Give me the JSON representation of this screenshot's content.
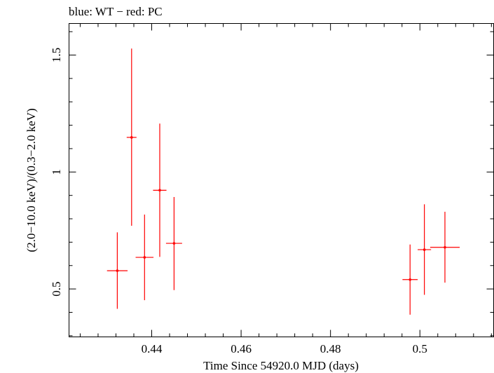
{
  "chart_data": {
    "type": "scatter",
    "title": "blue: WT − red: PC",
    "xlabel": "Time Since 54920.0 MJD (days)",
    "ylabel": "(2.0−10.0 keV)/(0.3−2.0 keV)",
    "xlim": [
      0.4215,
      0.5165
    ],
    "ylim": [
      0.295,
      1.635
    ],
    "x_ticks": [
      {
        "value": 0.44,
        "label": "0.44"
      },
      {
        "value": 0.46,
        "label": "0.46"
      },
      {
        "value": 0.48,
        "label": "0.48"
      },
      {
        "value": 0.5,
        "label": "0.5"
      }
    ],
    "y_ticks": [
      {
        "value": 0.5,
        "label": "0.5"
      },
      {
        "value": 1.0,
        "label": "1"
      },
      {
        "value": 1.5,
        "label": "1.5"
      }
    ],
    "grid": false,
    "legend": "none",
    "colors": {
      "pc": "#ff0000",
      "axis": "#000000"
    },
    "series": [
      {
        "points": [
          {
            "x": 0.4323,
            "xerr": 0.0023,
            "y": 0.578,
            "ylo": 0.415,
            "yhi": 0.742
          },
          {
            "x": 0.4355,
            "xerr": 0.0011,
            "y": 1.148,
            "ylo": 0.77,
            "yhi": 1.528
          },
          {
            "x": 0.4384,
            "xerr": 0.002,
            "y": 0.635,
            "ylo": 0.452,
            "yhi": 0.818
          },
          {
            "x": 0.4418,
            "xerr": 0.0015,
            "y": 0.922,
            "ylo": 0.637,
            "yhi": 1.207
          },
          {
            "x": 0.445,
            "xerr": 0.0018,
            "y": 0.695,
            "ylo": 0.495,
            "yhi": 0.893
          },
          {
            "x": 0.4978,
            "xerr": 0.0017,
            "y": 0.54,
            "ylo": 0.39,
            "yhi": 0.69
          },
          {
            "x": 0.501,
            "xerr": 0.0015,
            "y": 0.668,
            "ylo": 0.475,
            "yhi": 0.862
          },
          {
            "x": 0.5056,
            "xerr": 0.0033,
            "y": 0.678,
            "ylo": 0.527,
            "yhi": 0.83
          }
        ]
      }
    ]
  }
}
